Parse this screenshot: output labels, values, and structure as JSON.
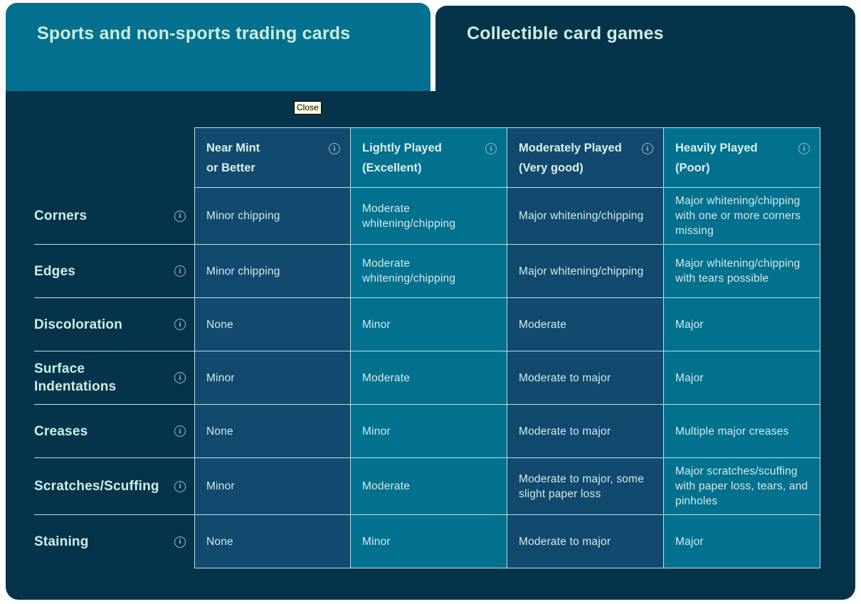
{
  "tabs": [
    {
      "label": "Sports and non-sports trading cards",
      "active": true
    },
    {
      "label": "Collectible card games",
      "active": false
    }
  ],
  "tooltip": {
    "label": "Close"
  },
  "grading_table": {
    "columns": [
      {
        "name": "Near Mint",
        "grade": "or Better"
      },
      {
        "name": "Lightly Played",
        "grade": "(Excellent)"
      },
      {
        "name": "Moderately Played",
        "grade": "(Very good)"
      },
      {
        "name": "Heavily Played",
        "grade": "(Poor)"
      }
    ],
    "rows": [
      {
        "label": "Corners",
        "cells": [
          "Minor chipping",
          "Moderate whitening/chipping",
          "Major whitening/chipping",
          "Major whitening/chipping with one or more corners missing"
        ]
      },
      {
        "label": "Edges",
        "cells": [
          "Minor chipping",
          "Moderate whitening/chipping",
          "Major whitening/chipping",
          "Major whitening/chipping with tears possible"
        ]
      },
      {
        "label": "Discoloration",
        "cells": [
          "None",
          "Minor",
          "Moderate",
          "Major"
        ]
      },
      {
        "label": "Surface Indentations",
        "cells": [
          "Minor",
          "Moderate",
          "Moderate to major",
          "Major"
        ]
      },
      {
        "label": "Creases",
        "cells": [
          "None",
          "Minor",
          "Moderate to major",
          "Multiple major creases"
        ]
      },
      {
        "label": "Scratches/Scuffing",
        "cells": [
          "Minor",
          "Moderate",
          "Moderate to major, some slight paper loss",
          "Major scratches/scuffing with paper loss, tears, and pinholes"
        ]
      },
      {
        "label": "Staining",
        "cells": [
          "None",
          "Minor",
          "Moderate to major",
          "Major"
        ]
      }
    ]
  },
  "icons": {
    "info_glyph": "i"
  },
  "colors": {
    "page_background": "#ffffff",
    "panel": "#05334a",
    "active_tab": "#04708f",
    "dark_cell": "#114a6e",
    "teal_cell": "#02708f",
    "cell_border": "#b9e2e8",
    "heading_text": "#c9eee0",
    "cell_text": "#d3ebe8",
    "info_icon": "#a3b6bf",
    "tooltip_bg": "#ffffe1"
  }
}
